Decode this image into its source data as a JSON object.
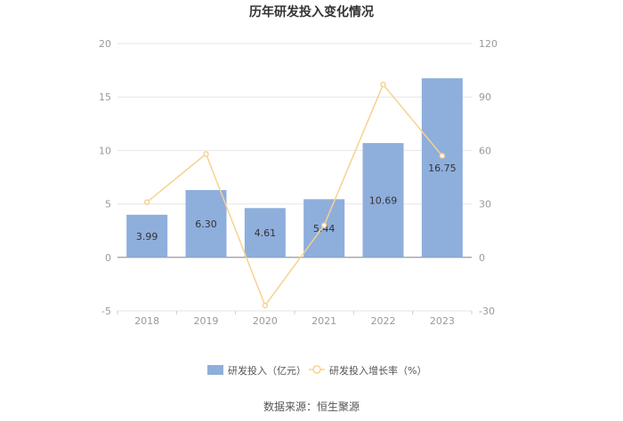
{
  "chart_data": {
    "type": "bar",
    "title": "历年研发投入变化情况",
    "categories": [
      "2018",
      "2019",
      "2020",
      "2021",
      "2022",
      "2023"
    ],
    "series": [
      {
        "name": "研发投入（亿元）",
        "type": "bar",
        "axis": "left",
        "color": "#8eaedc",
        "values": [
          3.99,
          6.3,
          4.61,
          5.44,
          10.69,
          16.75
        ],
        "labels": [
          "3.99",
          "6.30",
          "4.61",
          "5.44",
          "10.69",
          "16.75"
        ]
      },
      {
        "name": "研发投入增长率（%）",
        "type": "line",
        "axis": "right",
        "color": "#f7d28f",
        "values": [
          31,
          58,
          -27,
          18,
          97,
          57
        ]
      }
    ],
    "left_axis": {
      "ylim": [
        -5,
        20
      ],
      "ticks": [
        "-5",
        "0",
        "5",
        "10",
        "15",
        "20"
      ]
    },
    "right_axis": {
      "ylim": [
        -30,
        120
      ],
      "ticks": [
        "-30",
        "0",
        "30",
        "60",
        "90",
        "120"
      ]
    },
    "grid": true,
    "legend_position": "bottom"
  },
  "source": "数据来源：恒生聚源"
}
